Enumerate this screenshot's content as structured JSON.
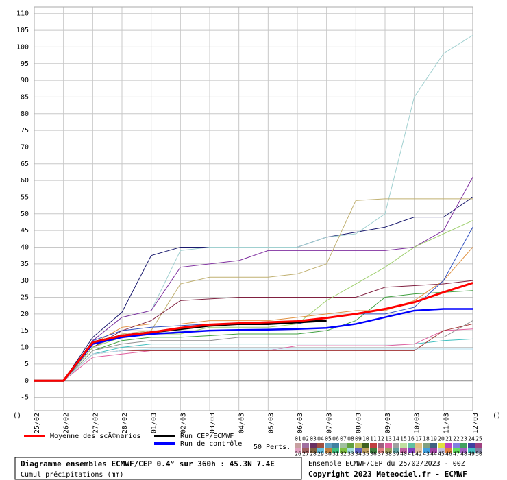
{
  "chart_data": {
    "type": "line",
    "title": "Diagramme ensembles ECMWF/CEP 0.4° sur 360h : 45.3N 7.4E",
    "subtitle": "Cumul précipitations (mm)",
    "run_info": "Ensemble ECMWF/CEP du 25/02/2023 - 00Z",
    "copyright": "Copyright 2023 Meteociel.fr - ECMWF",
    "y_unit_left": "()",
    "y_unit_right": "()",
    "members_label": "50 Perts.",
    "categories": [
      "25/02",
      "26/02",
      "27/02",
      "28/02",
      "01/03",
      "02/03",
      "03/03",
      "04/03",
      "05/03",
      "06/03",
      "07/03",
      "08/03",
      "09/03",
      "10/03",
      "11/03",
      "12/03"
    ],
    "ylim": [
      -9,
      112
    ],
    "yticks": [
      -5,
      0,
      5,
      10,
      15,
      20,
      25,
      30,
      35,
      40,
      45,
      50,
      55,
      60,
      65,
      70,
      75,
      80,
      85,
      90,
      95,
      100,
      105,
      110
    ],
    "grid": true,
    "series": [
      {
        "color": "#1a1a6e",
        "values": [
          0,
          0,
          13,
          20.5,
          37.5,
          40,
          40,
          40,
          40,
          40,
          43,
          44.5,
          46,
          49,
          49,
          55
        ]
      },
      {
        "color": "#a0d0d0",
        "values": [
          0,
          0,
          12,
          19,
          21,
          39,
          40,
          40,
          40,
          40,
          43,
          44,
          50,
          85,
          98,
          103.5
        ]
      },
      {
        "color": "#8030a0",
        "values": [
          0,
          0,
          12,
          19,
          21,
          34,
          35,
          36,
          39,
          39,
          39,
          39,
          39,
          40,
          45,
          61
        ]
      },
      {
        "color": "#c0b070",
        "values": [
          0,
          0,
          10,
          14,
          15,
          29,
          31,
          31,
          31,
          32,
          35,
          54,
          54.5,
          54.5,
          54.5,
          54.5
        ]
      },
      {
        "color": "#802040",
        "values": [
          0,
          0,
          10,
          15,
          18,
          24,
          24.5,
          25,
          25,
          25,
          25,
          25,
          28,
          28.5,
          29,
          30
        ]
      },
      {
        "color": "#40a040",
        "values": [
          0,
          0,
          9,
          12,
          13,
          13,
          13.5,
          14,
          14,
          14,
          15,
          18,
          25,
          26,
          26.5,
          27
        ]
      },
      {
        "color": "#40c0c0",
        "values": [
          0,
          0,
          8,
          10,
          11,
          11,
          11,
          11,
          11,
          11,
          11,
          11,
          11,
          11,
          12,
          12.5
        ]
      },
      {
        "color": "#e060a0",
        "values": [
          0,
          0,
          7,
          8,
          9,
          9,
          9,
          9,
          9,
          10.5,
          10.5,
          10.5,
          10.5,
          11,
          15,
          15.5
        ]
      },
      {
        "color": "#a0d070",
        "values": [
          0,
          0,
          10,
          13,
          14,
          14,
          16,
          16,
          16,
          17,
          24,
          29,
          34,
          40,
          44,
          48
        ]
      },
      {
        "color": "#909090",
        "values": [
          0,
          0,
          9,
          11,
          12,
          12,
          12,
          13,
          13,
          13,
          13,
          13,
          13,
          13,
          13,
          18
        ]
      },
      {
        "color": "#e09040",
        "values": [
          0,
          0,
          11,
          16,
          17,
          17,
          18,
          18,
          18,
          19,
          20,
          21,
          21,
          24,
          30,
          40
        ]
      },
      {
        "color": "#a03030",
        "values": [
          0,
          0,
          8,
          9,
          9,
          9,
          9,
          9,
          9,
          9,
          9,
          9,
          9,
          9,
          15,
          17
        ]
      },
      {
        "color": "#b0e0f0",
        "values": [
          0,
          0,
          8,
          9,
          9.5,
          9.5,
          9.5,
          9.5,
          9.5,
          9.5,
          9.5,
          9.5,
          9.5,
          9.5,
          9.5,
          9.5
        ]
      },
      {
        "color": "#3050c0",
        "values": [
          0,
          0,
          12,
          15,
          16,
          16.5,
          17,
          17,
          17,
          17,
          19,
          20,
          20,
          22,
          30,
          46
        ]
      },
      {
        "name": "Run de contrôle",
        "color": "#0000ff",
        "width": 2.5,
        "values": [
          0,
          0,
          11,
          13,
          14,
          14.5,
          15,
          15.2,
          15.3,
          15.5,
          15.8,
          17,
          19,
          21,
          21.5,
          21.5
        ]
      },
      {
        "name": "Run CEP/ECMWF",
        "color": "#000000",
        "width": 3,
        "values": [
          0,
          0,
          11.5,
          13.5,
          14.5,
          15.5,
          16.5,
          17,
          17,
          17.5,
          18,
          null,
          null,
          null,
          null,
          null
        ]
      },
      {
        "name": "Moyenne des scÃ©narios",
        "color": "#ff0000",
        "width": 3,
        "values": [
          0,
          0,
          11.5,
          13.5,
          14.5,
          15.8,
          16.8,
          17.2,
          17.5,
          17.8,
          18.8,
          20,
          21.5,
          23.5,
          26.5,
          29.3
        ]
      }
    ],
    "members": [
      {
        "label": "01",
        "color": "#c8a0a0"
      },
      {
        "label": "02",
        "color": "#a070a0"
      },
      {
        "label": "03",
        "color": "#6a3060"
      },
      {
        "label": "04",
        "color": "#a05040"
      },
      {
        "label": "05",
        "color": "#60a0c0"
      },
      {
        "label": "06",
        "color": "#4080a0"
      },
      {
        "label": "07",
        "color": "#a0c0a0"
      },
      {
        "label": "08",
        "color": "#60a040"
      },
      {
        "label": "09",
        "color": "#c0c060"
      },
      {
        "label": "10",
        "color": "#406020"
      },
      {
        "label": "11",
        "color": "#c04040"
      },
      {
        "label": "12",
        "color": "#a06080"
      },
      {
        "label": "13",
        "color": "#e060a0"
      },
      {
        "label": "14",
        "color": "#a0a0a0"
      },
      {
        "label": "15",
        "color": "#c0e0a0"
      },
      {
        "label": "16",
        "color": "#60c0a0"
      },
      {
        "label": "17",
        "color": "#e0c080"
      },
      {
        "label": "18",
        "color": "#80a080"
      },
      {
        "label": "19",
        "color": "#406080"
      },
      {
        "label": "20",
        "color": "#e0e040"
      },
      {
        "label": "21",
        "color": "#c040c0"
      },
      {
        "label": "22",
        "color": "#8080e0"
      },
      {
        "label": "23",
        "color": "#40a060"
      },
      {
        "label": "24",
        "color": "#4040a0"
      },
      {
        "label": "25",
        "color": "#a04080"
      },
      {
        "label": "26",
        "color": "#e0a0c0"
      },
      {
        "label": "27",
        "color": "#a06060"
      },
      {
        "label": "28",
        "color": "#806040"
      },
      {
        "label": "29",
        "color": "#60c0e0"
      },
      {
        "label": "30",
        "color": "#c08040"
      },
      {
        "label": "31",
        "color": "#40c080"
      },
      {
        "label": "32",
        "color": "#80c040"
      },
      {
        "label": "33",
        "color": "#a0e0e0"
      },
      {
        "label": "34",
        "color": "#6060c0"
      },
      {
        "label": "35",
        "color": "#c0a060"
      },
      {
        "label": "36",
        "color": "#408040"
      },
      {
        "label": "37",
        "color": "#e08080"
      },
      {
        "label": "38",
        "color": "#a0a060"
      },
      {
        "label": "39",
        "color": "#60a0a0"
      },
      {
        "label": "40",
        "color": "#c060a0"
      },
      {
        "label": "41",
        "color": "#8040c0"
      },
      {
        "label": "42",
        "color": "#e0c0a0"
      },
      {
        "label": "43",
        "color": "#40a0e0"
      },
      {
        "label": "44",
        "color": "#a040a0"
      },
      {
        "label": "45",
        "color": "#c0c0e0"
      },
      {
        "label": "46",
        "color": "#e08040"
      },
      {
        "label": "47",
        "color": "#60e060"
      },
      {
        "label": "48",
        "color": "#a060c0"
      },
      {
        "label": "49",
        "color": "#40c0c0"
      },
      {
        "label": "50",
        "color": "#8080a0"
      }
    ]
  }
}
